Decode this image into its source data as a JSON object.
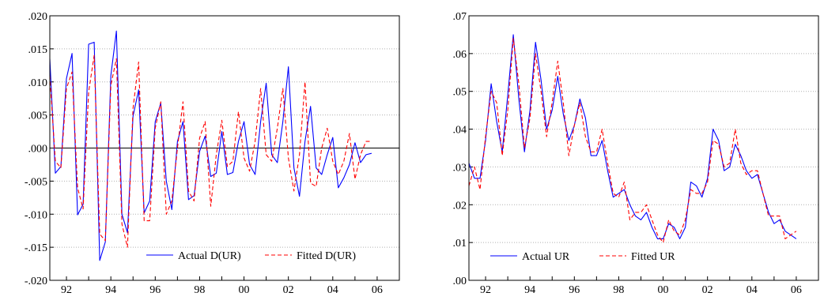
{
  "chart_data": [
    {
      "type": "line",
      "ylim": [
        -0.02,
        0.02
      ],
      "yticks": [
        ".020",
        ".015",
        ".010",
        ".005",
        ".000",
        "-.005",
        "-.010",
        "-.015",
        "-.020"
      ],
      "xlim": [
        1991.25,
        2007.0
      ],
      "xticks": [
        {
          "value": 1992,
          "label": "92"
        },
        {
          "value": 1994,
          "label": "94"
        },
        {
          "value": 1996,
          "label": "96"
        },
        {
          "value": 1998,
          "label": "98"
        },
        {
          "value": 2000,
          "label": "00"
        },
        {
          "value": 2002,
          "label": "02"
        },
        {
          "value": 2004,
          "label": "04"
        },
        {
          "value": 2006,
          "label": "06"
        }
      ],
      "grid": true,
      "zero_line": true,
      "legend_position": "bottom-right",
      "x_start": 1991.25,
      "x_step": 0.25,
      "series": [
        {
          "name": "Actual D(UR)",
          "color": "#0000ff",
          "dash": "solid",
          "values": [
            0.0135,
            -0.0038,
            -0.0028,
            0.0105,
            0.0143,
            -0.0101,
            -0.0085,
            0.0157,
            0.016,
            -0.017,
            -0.0142,
            0.011,
            0.0177,
            -0.01,
            -0.0128,
            0.0048,
            0.0088,
            -0.0098,
            -0.008,
            0.004,
            0.0068,
            -0.005,
            -0.0093,
            0.001,
            0.004,
            -0.0078,
            -0.0072,
            -0.0005,
            0.0018,
            -0.0043,
            -0.0038,
            0.0025,
            -0.004,
            -0.0037,
            0.001,
            0.004,
            -0.0025,
            -0.004,
            0.004,
            0.0098,
            -0.001,
            -0.0022,
            0.004,
            0.0123,
            -0.003,
            -0.0073,
            0.001,
            0.0063,
            -0.003,
            -0.004,
            -0.001,
            0.0016,
            -0.006,
            -0.0045,
            -0.0025,
            0.0008,
            -0.0022,
            -0.001,
            -0.0008
          ]
        },
        {
          "name": "Fitted D(UR)",
          "color": "#ff0000",
          "dash": "dashed",
          "values": [
            0.011,
            -0.002,
            -0.003,
            0.009,
            0.0115,
            -0.006,
            -0.0092,
            0.0085,
            0.014,
            -0.013,
            -0.014,
            0.0095,
            0.0135,
            -0.0115,
            -0.015,
            0.006,
            0.013,
            -0.011,
            -0.011,
            0.003,
            0.007,
            -0.01,
            -0.008,
            0.0,
            0.007,
            -0.0065,
            -0.008,
            0.0015,
            0.004,
            -0.0088,
            -0.001,
            0.0042,
            -0.0028,
            -0.002,
            0.0055,
            -0.0015,
            -0.0035,
            0.001,
            0.009,
            -0.001,
            -0.002,
            0.003,
            0.009,
            -0.0015,
            -0.0065,
            -0.001,
            0.01,
            -0.0053,
            -0.0058,
            0.0,
            0.003,
            -0.002,
            -0.004,
            -0.002,
            0.0022,
            -0.0047,
            -0.001,
            0.001,
            0.001
          ]
        }
      ]
    },
    {
      "type": "line",
      "ylim": [
        0.0,
        0.07
      ],
      "yticks": [
        ".07",
        ".06",
        ".05",
        ".04",
        ".03",
        ".02",
        ".01",
        ".00"
      ],
      "xlim": [
        1991.25,
        2007.0
      ],
      "xticks": [
        {
          "value": 1992,
          "label": "92"
        },
        {
          "value": 1994,
          "label": "94"
        },
        {
          "value": 1996,
          "label": "96"
        },
        {
          "value": 1998,
          "label": "98"
        },
        {
          "value": 2000,
          "label": "00"
        },
        {
          "value": 2002,
          "label": "02"
        },
        {
          "value": 2004,
          "label": "04"
        },
        {
          "value": 2006,
          "label": "06"
        }
      ],
      "grid": true,
      "zero_line": false,
      "legend_position": "bottom-left",
      "x_start": 1991.25,
      "x_step": 0.25,
      "series": [
        {
          "name": "Actual UR",
          "color": "#0000ff",
          "dash": "solid",
          "values": [
            0.031,
            0.027,
            0.027,
            0.037,
            0.052,
            0.042,
            0.034,
            0.049,
            0.065,
            0.048,
            0.034,
            0.045,
            0.063,
            0.053,
            0.04,
            0.045,
            0.054,
            0.044,
            0.037,
            0.041,
            0.048,
            0.043,
            0.033,
            0.033,
            0.037,
            0.029,
            0.022,
            0.023,
            0.024,
            0.02,
            0.017,
            0.016,
            0.018,
            0.014,
            0.011,
            0.011,
            0.015,
            0.014,
            0.011,
            0.014,
            0.026,
            0.025,
            0.022,
            0.027,
            0.04,
            0.037,
            0.029,
            0.03,
            0.036,
            0.033,
            0.029,
            0.027,
            0.028,
            0.023,
            0.018,
            0.015,
            0.016,
            0.013,
            0.012,
            0.011
          ]
        },
        {
          "name": "Fitted UR",
          "color": "#ff0000",
          "dash": "dashed",
          "values": [
            0.025,
            0.03,
            0.024,
            0.038,
            0.05,
            0.047,
            0.033,
            0.045,
            0.064,
            0.052,
            0.035,
            0.043,
            0.06,
            0.05,
            0.038,
            0.047,
            0.058,
            0.047,
            0.033,
            0.041,
            0.047,
            0.038,
            0.034,
            0.034,
            0.04,
            0.031,
            0.023,
            0.022,
            0.026,
            0.016,
            0.018,
            0.018,
            0.02,
            0.016,
            0.012,
            0.01,
            0.016,
            0.013,
            0.012,
            0.016,
            0.024,
            0.023,
            0.023,
            0.026,
            0.037,
            0.036,
            0.03,
            0.031,
            0.04,
            0.031,
            0.028,
            0.029,
            0.029,
            0.023,
            0.017,
            0.017,
            0.017,
            0.011,
            0.012,
            0.013
          ]
        }
      ]
    }
  ]
}
